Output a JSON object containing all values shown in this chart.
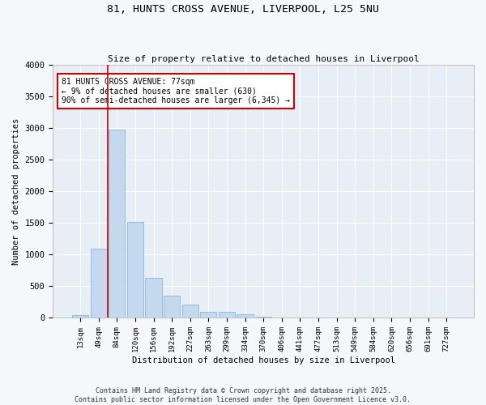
{
  "title_line1": "81, HUNTS CROSS AVENUE, LIVERPOOL, L25 5NU",
  "title_line2": "Size of property relative to detached houses in Liverpool",
  "xlabel": "Distribution of detached houses by size in Liverpool",
  "ylabel": "Number of detached properties",
  "bar_color": "#c5d9ee",
  "bar_edge_color": "#7aafd4",
  "background_color": "#e8eef5",
  "grid_color": "#ffffff",
  "categories": [
    "13sqm",
    "49sqm",
    "84sqm",
    "120sqm",
    "156sqm",
    "192sqm",
    "227sqm",
    "263sqm",
    "299sqm",
    "334sqm",
    "370sqm",
    "406sqm",
    "441sqm",
    "477sqm",
    "513sqm",
    "549sqm",
    "584sqm",
    "620sqm",
    "656sqm",
    "691sqm",
    "727sqm"
  ],
  "values": [
    50,
    1100,
    2980,
    1520,
    630,
    350,
    210,
    95,
    95,
    55,
    25,
    5,
    0,
    0,
    0,
    0,
    0,
    0,
    0,
    0,
    0
  ],
  "ylim": [
    0,
    4000
  ],
  "yticks": [
    0,
    500,
    1000,
    1500,
    2000,
    2500,
    3000,
    3500,
    4000
  ],
  "vline_color": "#cc0000",
  "annotation_text": "81 HUNTS CROSS AVENUE: 77sqm\n← 9% of detached houses are smaller (630)\n90% of semi-detached houses are larger (6,345) →",
  "footer_line1": "Contains HM Land Registry data © Crown copyright and database right 2025.",
  "footer_line2": "Contains public sector information licensed under the Open Government Licence v3.0."
}
